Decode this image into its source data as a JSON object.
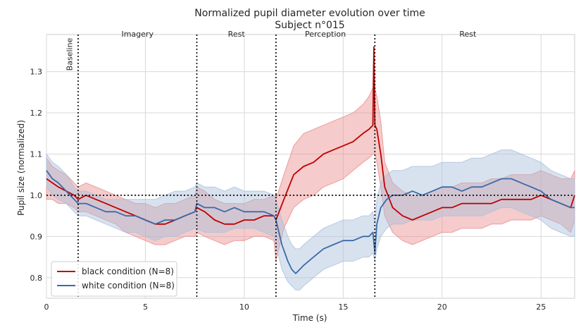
{
  "chart_data": {
    "type": "line",
    "title_line1": "Normalized pupil diameter evolution over time",
    "title_line2": "Subject n°015",
    "xlabel": "Time (s)",
    "ylabel": "Pupil size (normalized)",
    "xlim": [
      0,
      26.7
    ],
    "ylim": [
      0.75,
      1.39
    ],
    "xticks": [
      0,
      5,
      10,
      15,
      20,
      25
    ],
    "yticks": [
      0.8,
      0.9,
      1.0,
      1.1,
      1.2,
      1.3
    ],
    "grid": true,
    "legend_position": "lower-left",
    "reference_line_y": 1.0,
    "phase_boundaries": [
      1.6,
      7.6,
      11.6,
      16.6
    ],
    "phases": [
      {
        "label": "Baseline",
        "x": 1.2,
        "vertical": true
      },
      {
        "label": "Imagery",
        "x": 4.6
      },
      {
        "label": "Rest",
        "x": 9.6
      },
      {
        "label": "Perception",
        "x": 14.1
      },
      {
        "label": "Rest",
        "x": 21.3
      }
    ],
    "series": [
      {
        "name": "black condition (N=8)",
        "color": "#c00000",
        "band_color": "#e88b8b",
        "x": [
          0,
          0.3,
          0.6,
          1.0,
          1.4,
          1.6,
          2.0,
          2.5,
          3.0,
          3.5,
          4.0,
          4.5,
          5.0,
          5.5,
          6.0,
          6.5,
          7.0,
          7.5,
          7.6,
          8.0,
          8.5,
          9.0,
          9.5,
          10.0,
          10.5,
          11.0,
          11.5,
          11.6,
          12.0,
          12.5,
          13.0,
          13.5,
          14.0,
          14.5,
          15.0,
          15.5,
          16.0,
          16.3,
          16.5,
          16.55,
          16.6,
          16.7,
          16.9,
          17.1,
          17.5,
          18.0,
          18.5,
          19.0,
          19.5,
          20.0,
          20.5,
          21.0,
          21.5,
          22.0,
          22.5,
          23.0,
          23.5,
          24.0,
          24.5,
          25.0,
          25.5,
          26.0,
          26.5,
          26.7
        ],
        "y": [
          1.04,
          1.03,
          1.02,
          1.01,
          1.0,
          0.99,
          1.0,
          0.99,
          0.98,
          0.97,
          0.96,
          0.95,
          0.94,
          0.93,
          0.93,
          0.94,
          0.95,
          0.96,
          0.97,
          0.96,
          0.94,
          0.93,
          0.93,
          0.94,
          0.94,
          0.95,
          0.95,
          0.94,
          0.99,
          1.05,
          1.07,
          1.08,
          1.1,
          1.11,
          1.12,
          1.13,
          1.15,
          1.16,
          1.17,
          1.36,
          1.17,
          1.16,
          1.1,
          1.02,
          0.97,
          0.95,
          0.94,
          0.95,
          0.96,
          0.97,
          0.97,
          0.98,
          0.98,
          0.98,
          0.98,
          0.99,
          0.99,
          0.99,
          0.99,
          1.0,
          0.99,
          0.98,
          0.97,
          1.0
        ],
        "lower": [
          0.99,
          0.99,
          0.98,
          0.98,
          0.97,
          0.96,
          0.96,
          0.95,
          0.94,
          0.93,
          0.91,
          0.9,
          0.89,
          0.88,
          0.88,
          0.89,
          0.9,
          0.9,
          0.91,
          0.9,
          0.89,
          0.88,
          0.89,
          0.89,
          0.9,
          0.9,
          0.89,
          0.84,
          0.92,
          0.97,
          0.99,
          1.0,
          1.02,
          1.03,
          1.04,
          1.06,
          1.08,
          1.09,
          1.1,
          1.1,
          1.1,
          1.08,
          1.02,
          0.95,
          0.91,
          0.89,
          0.88,
          0.89,
          0.9,
          0.91,
          0.91,
          0.92,
          0.92,
          0.92,
          0.93,
          0.93,
          0.94,
          0.94,
          0.94,
          0.95,
          0.94,
          0.93,
          0.91,
          0.94
        ],
        "upper": [
          1.09,
          1.07,
          1.06,
          1.05,
          1.03,
          1.02,
          1.03,
          1.02,
          1.01,
          1.0,
          0.99,
          0.98,
          0.98,
          0.97,
          0.98,
          0.98,
          0.99,
          1.0,
          1.02,
          1.01,
          0.99,
          0.98,
          0.98,
          0.98,
          0.99,
          0.99,
          1.0,
          0.99,
          1.05,
          1.12,
          1.15,
          1.16,
          1.17,
          1.18,
          1.19,
          1.2,
          1.22,
          1.24,
          1.26,
          1.36,
          1.26,
          1.24,
          1.18,
          1.08,
          1.03,
          1.01,
          1.0,
          1.0,
          1.01,
          1.02,
          1.02,
          1.03,
          1.03,
          1.03,
          1.04,
          1.04,
          1.05,
          1.05,
          1.05,
          1.06,
          1.05,
          1.04,
          1.04,
          1.06
        ]
      },
      {
        "name": "white condition (N=8)",
        "color": "#3a6aa8",
        "band_color": "#a9bfdc",
        "x": [
          0,
          0.3,
          0.6,
          1.0,
          1.4,
          1.6,
          2.0,
          2.5,
          3.0,
          3.5,
          4.0,
          4.5,
          5.0,
          5.5,
          6.0,
          6.5,
          7.0,
          7.5,
          7.6,
          8.0,
          8.5,
          9.0,
          9.5,
          10.0,
          10.5,
          11.0,
          11.5,
          11.6,
          11.9,
          12.2,
          12.4,
          12.6,
          12.8,
          13.0,
          13.5,
          14.0,
          14.5,
          15.0,
          15.5,
          16.0,
          16.3,
          16.5,
          16.6,
          16.7,
          16.9,
          17.2,
          17.5,
          18.0,
          18.5,
          19.0,
          19.5,
          20.0,
          20.5,
          21.0,
          21.5,
          22.0,
          22.5,
          23.0,
          23.5,
          24.0,
          24.5,
          25.0,
          25.5,
          26.0,
          26.5,
          26.7
        ],
        "y": [
          1.06,
          1.04,
          1.03,
          1.01,
          0.99,
          0.98,
          0.98,
          0.97,
          0.96,
          0.96,
          0.95,
          0.95,
          0.94,
          0.93,
          0.94,
          0.94,
          0.95,
          0.96,
          0.98,
          0.97,
          0.97,
          0.96,
          0.97,
          0.96,
          0.96,
          0.96,
          0.95,
          0.94,
          0.88,
          0.84,
          0.82,
          0.81,
          0.82,
          0.83,
          0.85,
          0.87,
          0.88,
          0.89,
          0.89,
          0.9,
          0.9,
          0.91,
          0.86,
          0.93,
          0.97,
          0.99,
          1.0,
          1.0,
          1.01,
          1.0,
          1.01,
          1.02,
          1.02,
          1.01,
          1.02,
          1.02,
          1.03,
          1.04,
          1.04,
          1.03,
          1.02,
          1.01,
          0.99,
          0.98,
          0.97,
          0.97
        ],
        "lower": [
          1.02,
          1.0,
          0.99,
          0.98,
          0.96,
          0.95,
          0.95,
          0.94,
          0.93,
          0.92,
          0.91,
          0.91,
          0.9,
          0.89,
          0.9,
          0.9,
          0.91,
          0.92,
          0.92,
          0.91,
          0.91,
          0.91,
          0.92,
          0.92,
          0.92,
          0.91,
          0.9,
          0.88,
          0.82,
          0.79,
          0.78,
          0.77,
          0.77,
          0.78,
          0.8,
          0.82,
          0.83,
          0.84,
          0.84,
          0.85,
          0.85,
          0.86,
          0.84,
          0.87,
          0.9,
          0.92,
          0.93,
          0.93,
          0.94,
          0.94,
          0.94,
          0.95,
          0.95,
          0.95,
          0.95,
          0.95,
          0.96,
          0.97,
          0.97,
          0.96,
          0.95,
          0.94,
          0.92,
          0.91,
          0.9,
          0.9
        ],
        "upper": [
          1.1,
          1.08,
          1.07,
          1.05,
          1.02,
          1.01,
          1.01,
          1.0,
          0.99,
          0.99,
          0.99,
          0.99,
          0.99,
          0.99,
          1.0,
          1.01,
          1.01,
          1.02,
          1.03,
          1.02,
          1.02,
          1.01,
          1.02,
          1.01,
          1.01,
          1.01,
          1.0,
          0.99,
          0.94,
          0.9,
          0.88,
          0.87,
          0.87,
          0.88,
          0.9,
          0.92,
          0.93,
          0.94,
          0.94,
          0.95,
          0.95,
          0.96,
          0.93,
          0.99,
          1.03,
          1.05,
          1.06,
          1.06,
          1.07,
          1.07,
          1.07,
          1.08,
          1.08,
          1.08,
          1.09,
          1.09,
          1.1,
          1.11,
          1.11,
          1.1,
          1.09,
          1.08,
          1.06,
          1.05,
          1.04,
          1.04
        ]
      }
    ]
  }
}
